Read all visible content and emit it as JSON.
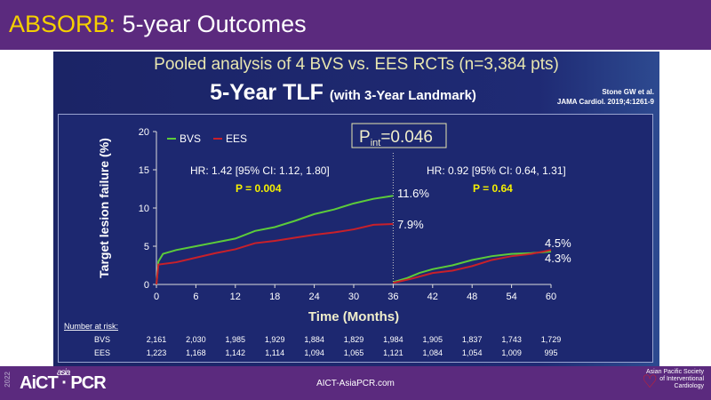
{
  "header": {
    "title_prefix": "ABSORB:",
    "title_rest": " 5-year Outcomes"
  },
  "slide": {
    "title": "Pooled analysis of 4 BVS vs. EES RCTs (n=3,384 pts)",
    "subtitle": "5-Year TLF",
    "subtitle_note": "(with 3-Year Landmark)",
    "citation_1": "Stone GW et al.",
    "citation_2": "JAMA Cardiol. 2019;4:1261-9"
  },
  "chart_data": {
    "type": "line",
    "ylabel": "Target lesion failure (%)",
    "xlabel": "Time (Months)",
    "ylim": [
      0,
      20
    ],
    "xlim": [
      0,
      60
    ],
    "yticks": [
      "0",
      "5",
      "10",
      "15",
      "20"
    ],
    "xticks": [
      "0",
      "6",
      "12",
      "18",
      "24",
      "30",
      "36",
      "42",
      "48",
      "54",
      "60"
    ],
    "landmark_month": 36,
    "p_interaction": "P",
    "p_interaction_sub": "int",
    "p_interaction_val": "=0.046",
    "annotations": {
      "hr_left": "HR: 1.42 [95% CI: 1.12, 1.80]",
      "p_left": "P = 0.004",
      "hr_right": "HR: 0.92 [95% CI: 0.64, 1.31]",
      "p_right": "P = 0.64",
      "bvs_end_left": "11.6%",
      "ees_end_left": "7.9%",
      "end_upper": "4.5%",
      "end_lower": "4.3%"
    },
    "series": [
      {
        "name": "BVS",
        "color": "#5ccc3a",
        "segments": [
          [
            [
              0,
              0
            ],
            [
              0.3,
              3
            ],
            [
              1,
              4
            ],
            [
              3,
              4.5
            ],
            [
              6,
              5
            ],
            [
              9,
              5.5
            ],
            [
              12,
              6
            ],
            [
              15,
              7
            ],
            [
              18,
              7.5
            ],
            [
              21,
              8.3
            ],
            [
              24,
              9.2
            ],
            [
              27,
              9.8
            ],
            [
              30,
              10.6
            ],
            [
              33,
              11.2
            ],
            [
              36,
              11.6
            ]
          ],
          [
            [
              36,
              0.3
            ],
            [
              38,
              0.8
            ],
            [
              40,
              1.5
            ],
            [
              42,
              2
            ],
            [
              45,
              2.5
            ],
            [
              48,
              3.2
            ],
            [
              51,
              3.7
            ],
            [
              54,
              4.0
            ],
            [
              57,
              4.1
            ],
            [
              60,
              4.3
            ]
          ]
        ]
      },
      {
        "name": "EES",
        "color": "#c8202a",
        "segments": [
          [
            [
              0,
              0
            ],
            [
              0.3,
              2.6
            ],
            [
              3,
              2.9
            ],
            [
              6,
              3.5
            ],
            [
              9,
              4.1
            ],
            [
              12,
              4.6
            ],
            [
              15,
              5.4
            ],
            [
              18,
              5.7
            ],
            [
              21,
              6.1
            ],
            [
              24,
              6.5
            ],
            [
              27,
              6.8
            ],
            [
              30,
              7.2
            ],
            [
              33,
              7.8
            ],
            [
              36,
              7.9
            ]
          ],
          [
            [
              36,
              0.2
            ],
            [
              39,
              0.8
            ],
            [
              42,
              1.5
            ],
            [
              45,
              1.8
            ],
            [
              48,
              2.4
            ],
            [
              51,
              3.2
            ],
            [
              54,
              3.7
            ],
            [
              57,
              4.0
            ],
            [
              60,
              4.5
            ]
          ]
        ]
      }
    ],
    "risk_table": {
      "label": "Number at risk:",
      "rows": [
        {
          "name": "BVS",
          "values": [
            "2,161",
            "2,030",
            "1,985",
            "1,929",
            "1,884",
            "1,829",
            "1,984",
            "1,905",
            "1,837",
            "1,743",
            "1,729"
          ]
        },
        {
          "name": "EES",
          "values": [
            "1,223",
            "1,168",
            "1,142",
            "1,114",
            "1,094",
            "1,065",
            "1,121",
            "1,084",
            "1,054",
            "1,009",
            "995"
          ]
        }
      ]
    }
  },
  "footer": {
    "year": "2022",
    "logo": "AICT PCR",
    "logo_small": "asia",
    "url": "AICT-AsiaPCR.com",
    "society": "Asian Pacific Society of Interventional Cardiology"
  }
}
